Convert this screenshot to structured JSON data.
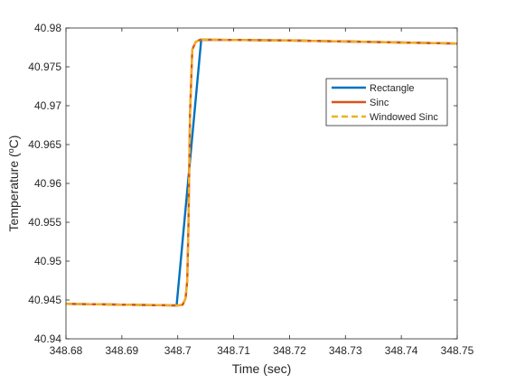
{
  "chart_data": {
    "type": "line",
    "xlabel": "Time (sec)",
    "ylabel_parts": {
      "pre": "Temperature (",
      "sup": "o",
      "post": "C)"
    },
    "xlim": [
      348.68,
      348.75
    ],
    "ylim": [
      40.94,
      40.98
    ],
    "x_ticks": [
      348.68,
      348.69,
      348.7,
      348.71,
      348.72,
      348.73,
      348.74,
      348.75
    ],
    "x_tick_labels": [
      "348.68",
      "348.69",
      "348.7",
      "348.71",
      "348.72",
      "348.73",
      "348.74",
      "348.75"
    ],
    "y_ticks": [
      40.94,
      40.945,
      40.95,
      40.955,
      40.96,
      40.965,
      40.97,
      40.975,
      40.98
    ],
    "y_tick_labels": [
      "40.94",
      "40.945",
      "40.95",
      "40.955",
      "40.96",
      "40.965",
      "40.97",
      "40.975",
      "40.98"
    ],
    "grid": false,
    "legend_position": "top-right",
    "series": [
      {
        "name": "Rectangle",
        "color": "#0072BD",
        "style": "solid",
        "x": [
          348.68,
          348.69,
          348.6998,
          348.7042,
          348.72,
          348.75
        ],
        "y": [
          40.9445,
          40.9444,
          40.9443,
          40.9785,
          40.9784,
          40.978
        ]
      },
      {
        "name": "Sinc",
        "color": "#D95319",
        "style": "solid",
        "x": [
          348.68,
          348.69,
          348.7,
          348.7009,
          348.7014,
          348.7017,
          348.7019,
          348.7022,
          348.7026,
          348.7032,
          348.704,
          348.72,
          348.75
        ],
        "y": [
          40.9445,
          40.9444,
          40.9443,
          40.9444,
          40.9452,
          40.9475,
          40.954,
          40.969,
          40.9772,
          40.9782,
          40.9785,
          40.9784,
          40.978
        ]
      },
      {
        "name": "Windowed Sinc",
        "color": "#EDB120",
        "style": "dashed",
        "x": [
          348.68,
          348.69,
          348.7,
          348.7009,
          348.7014,
          348.7017,
          348.7019,
          348.7022,
          348.7026,
          348.7032,
          348.704,
          348.72,
          348.75
        ],
        "y": [
          40.9445,
          40.9444,
          40.9443,
          40.9444,
          40.9452,
          40.9475,
          40.954,
          40.969,
          40.9772,
          40.9782,
          40.9785,
          40.9784,
          40.978
        ]
      }
    ]
  }
}
